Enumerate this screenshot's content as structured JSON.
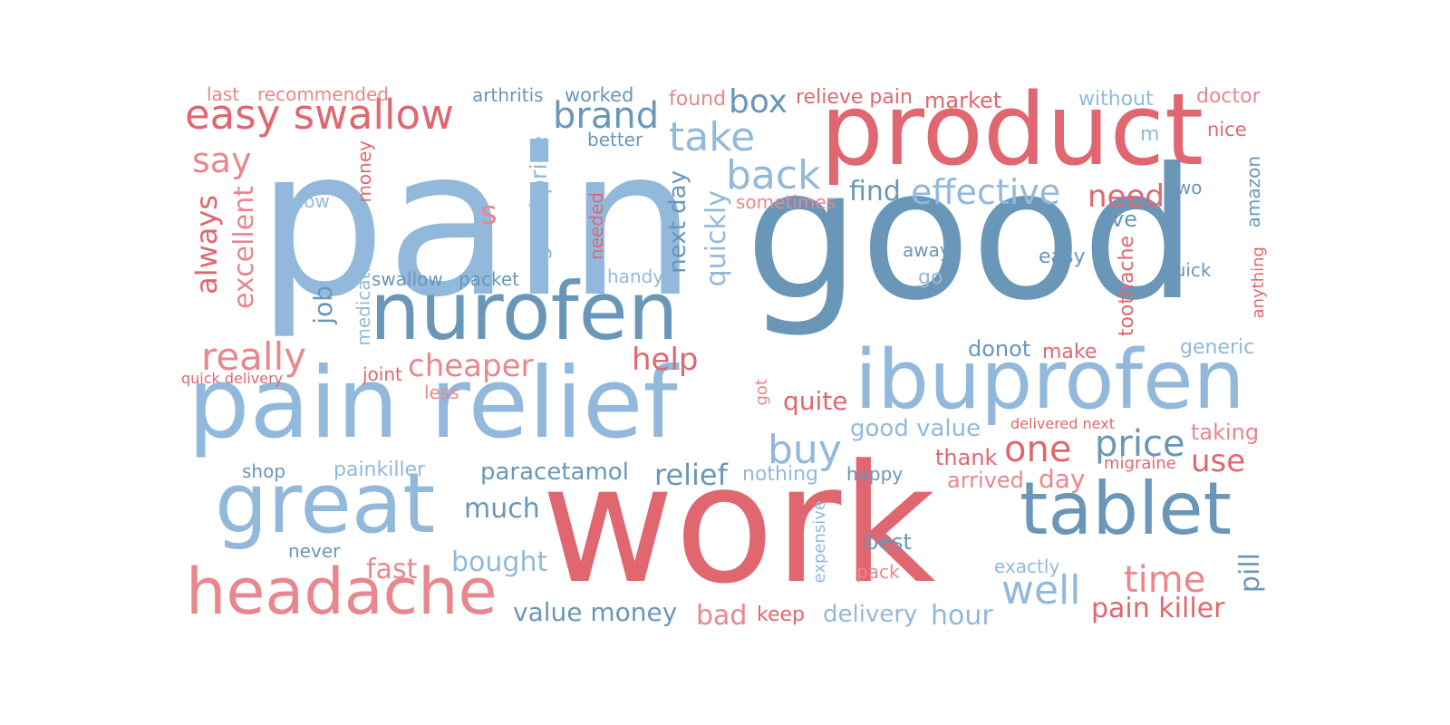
{
  "palette": {
    "light_blue": "#92b9dc",
    "steel_blue": "#6a97b8",
    "red": "#e06770",
    "pink": "#e8878e"
  },
  "words": [
    {
      "text": "pain",
      "color": "#92b9dc",
      "vertical": false
    },
    {
      "text": "good",
      "color": "#6a97b8",
      "vertical": false
    },
    {
      "text": "work",
      "color": "#e06770",
      "vertical": false
    },
    {
      "text": "product",
      "color": "#e06770",
      "vertical": false
    },
    {
      "text": "pain relief",
      "color": "#92b9dc",
      "vertical": false
    },
    {
      "text": "ibuprofen",
      "color": "#92b9dc",
      "vertical": false
    },
    {
      "text": "nurofen",
      "color": "#6a97b8",
      "vertical": false
    },
    {
      "text": "great",
      "color": "#92b9dc",
      "vertical": false
    },
    {
      "text": "tablet",
      "color": "#6a97b8",
      "vertical": false
    },
    {
      "text": "headache",
      "color": "#e8878e",
      "vertical": false
    },
    {
      "text": "easy swallow",
      "color": "#e06770",
      "vertical": false
    },
    {
      "text": "brand",
      "color": "#6a97b8",
      "vertical": false
    },
    {
      "text": "take",
      "color": "#92b9dc",
      "vertical": false
    },
    {
      "text": "box",
      "color": "#6a97b8",
      "vertical": false
    },
    {
      "text": "back",
      "color": "#92b9dc",
      "vertical": false
    },
    {
      "text": "effective",
      "color": "#92b9dc",
      "vertical": false
    },
    {
      "text": "need",
      "color": "#e06770",
      "vertical": false
    },
    {
      "text": "really",
      "color": "#e8878e",
      "vertical": false
    },
    {
      "text": "cheaper",
      "color": "#e8878e",
      "vertical": false
    },
    {
      "text": "help",
      "color": "#e06770",
      "vertical": false
    },
    {
      "text": "buy",
      "color": "#92b9dc",
      "vertical": false
    },
    {
      "text": "one",
      "color": "#e06770",
      "vertical": false
    },
    {
      "text": "price",
      "color": "#6a97b8",
      "vertical": false
    },
    {
      "text": "use",
      "color": "#e06770",
      "vertical": false
    },
    {
      "text": "well",
      "color": "#92b9dc",
      "vertical": false
    },
    {
      "text": "time",
      "color": "#e8878e",
      "vertical": false
    },
    {
      "text": "say",
      "color": "#e8878e",
      "vertical": false
    },
    {
      "text": "find",
      "color": "#6a97b8",
      "vertical": false
    },
    {
      "text": "s",
      "color": "#e8878e",
      "vertical": false
    },
    {
      "text": "last",
      "color": "#e8878e",
      "vertical": false
    },
    {
      "text": "recommended",
      "color": "#e8878e",
      "vertical": false
    },
    {
      "text": "arthritis",
      "color": "#6a97b8",
      "vertical": false
    },
    {
      "text": "worked",
      "color": "#6a97b8",
      "vertical": false
    },
    {
      "text": "found",
      "color": "#e8878e",
      "vertical": false
    },
    {
      "text": "relieve pain",
      "color": "#e06770",
      "vertical": false
    },
    {
      "text": "market",
      "color": "#e06770",
      "vertical": false
    },
    {
      "text": "without",
      "color": "#92b9dc",
      "vertical": false
    },
    {
      "text": "doctor",
      "color": "#e8878e",
      "vertical": false
    },
    {
      "text": "better",
      "color": "#6a97b8",
      "vertical": false
    },
    {
      "text": "m",
      "color": "#92b9dc",
      "vertical": false
    },
    {
      "text": "nice",
      "color": "#e06770",
      "vertical": false
    },
    {
      "text": "know",
      "color": "#92b9dc",
      "vertical": false
    },
    {
      "text": "sometimes",
      "color": "#e8878e",
      "vertical": false
    },
    {
      "text": "two",
      "color": "#6a97b8",
      "vertical": false
    },
    {
      "text": "ve",
      "color": "#6a97b8",
      "vertical": false
    },
    {
      "text": "away",
      "color": "#6a97b8",
      "vertical": false
    },
    {
      "text": "easy",
      "color": "#6a97b8",
      "vertical": false
    },
    {
      "text": "go",
      "color": "#92b9dc",
      "vertical": false
    },
    {
      "text": "quick",
      "color": "#6a97b8",
      "vertical": false
    },
    {
      "text": "swallow",
      "color": "#6a97b8",
      "vertical": false
    },
    {
      "text": "packet",
      "color": "#6a97b8",
      "vertical": false
    },
    {
      "text": "handy",
      "color": "#92b9dc",
      "vertical": false
    },
    {
      "text": "donot",
      "color": "#6a97b8",
      "vertical": false
    },
    {
      "text": "make",
      "color": "#e06770",
      "vertical": false
    },
    {
      "text": "generic",
      "color": "#92b9dc",
      "vertical": false
    },
    {
      "text": "quick delivery",
      "color": "#e06770",
      "vertical": false
    },
    {
      "text": "joint",
      "color": "#e06770",
      "vertical": false
    },
    {
      "text": "less",
      "color": "#e8878e",
      "vertical": false
    },
    {
      "text": "quite",
      "color": "#e06770",
      "vertical": false
    },
    {
      "text": "good value",
      "color": "#92b9dc",
      "vertical": false
    },
    {
      "text": "delivered next",
      "color": "#e06770",
      "vertical": false
    },
    {
      "text": "taking",
      "color": "#e8878e",
      "vertical": false
    },
    {
      "text": "thank",
      "color": "#e06770",
      "vertical": false
    },
    {
      "text": "shop",
      "color": "#6a97b8",
      "vertical": false
    },
    {
      "text": "painkiller",
      "color": "#92b9dc",
      "vertical": false
    },
    {
      "text": "paracetamol",
      "color": "#6a97b8",
      "vertical": false
    },
    {
      "text": "relief",
      "color": "#6a97b8",
      "vertical": false
    },
    {
      "text": "nothing",
      "color": "#92b9dc",
      "vertical": false
    },
    {
      "text": "happy",
      "color": "#6a97b8",
      "vertical": false
    },
    {
      "text": "arrived",
      "color": "#e8878e",
      "vertical": false
    },
    {
      "text": "day",
      "color": "#e8878e",
      "vertical": false
    },
    {
      "text": "migraine",
      "color": "#e06770",
      "vertical": false
    },
    {
      "text": "much",
      "color": "#6a97b8",
      "vertical": false
    },
    {
      "text": "never",
      "color": "#6a97b8",
      "vertical": false
    },
    {
      "text": "fast",
      "color": "#e8878e",
      "vertical": false
    },
    {
      "text": "bought",
      "color": "#92b9dc",
      "vertical": false
    },
    {
      "text": "best",
      "color": "#6a97b8",
      "vertical": false
    },
    {
      "text": "exactly",
      "color": "#92b9dc",
      "vertical": false
    },
    {
      "text": "pack",
      "color": "#e8878e",
      "vertical": false
    },
    {
      "text": "value money",
      "color": "#6a97b8",
      "vertical": false
    },
    {
      "text": "bad",
      "color": "#e8878e",
      "vertical": false
    },
    {
      "text": "keep",
      "color": "#e06770",
      "vertical": false
    },
    {
      "text": "delivery",
      "color": "#92b9dc",
      "vertical": false
    },
    {
      "text": "hour",
      "color": "#92b9dc",
      "vertical": false
    },
    {
      "text": "pain killer",
      "color": "#e06770",
      "vertical": false
    },
    {
      "text": "always",
      "color": "#e06770",
      "vertical": true
    },
    {
      "text": "excellent",
      "color": "#e8878e",
      "vertical": true
    },
    {
      "text": "money",
      "color": "#e06770",
      "vertical": true
    },
    {
      "text": "good price",
      "color": "#92b9dc",
      "vertical": true
    },
    {
      "text": "needed",
      "color": "#e06770",
      "vertical": true
    },
    {
      "text": "next day",
      "color": "#6a97b8",
      "vertical": true
    },
    {
      "text": "quickly",
      "color": "#92b9dc",
      "vertical": true
    },
    {
      "text": "medication",
      "color": "#92b9dc",
      "vertical": true
    },
    {
      "text": "job",
      "color": "#6a97b8",
      "vertical": true
    },
    {
      "text": "got",
      "color": "#e8878e",
      "vertical": true
    },
    {
      "text": "expensive",
      "color": "#92b9dc",
      "vertical": true
    },
    {
      "text": "toothache",
      "color": "#e06770",
      "vertical": true
    },
    {
      "text": "amazon",
      "color": "#6a97b8",
      "vertical": true
    },
    {
      "text": "anything",
      "color": "#e06770",
      "vertical": true
    },
    {
      "text": "pill",
      "color": "#6a97b8",
      "vertical": true
    }
  ]
}
